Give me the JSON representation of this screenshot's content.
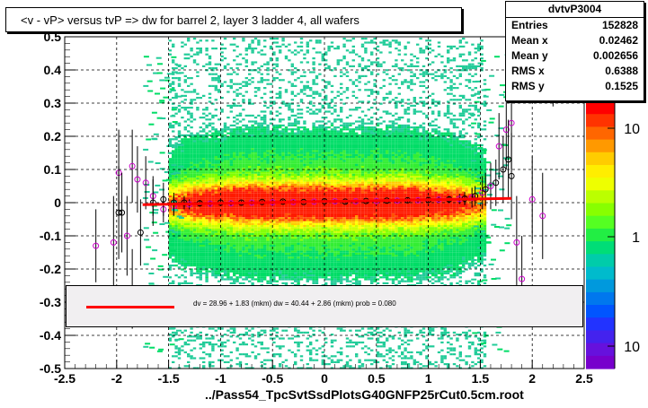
{
  "title": "<v - vP>       versus  tvP =>  dw for barrel 2, layer 3 ladder 4, all wafers",
  "x_axis_title": "../Pass54_TpcSvtSsdPlotsG40GNFP25rCut0.5cm.root",
  "stats": {
    "name": "dvtvP3004",
    "rows": [
      {
        "key": "Entries",
        "value": "152828"
      },
      {
        "key": "Mean x",
        "value": "0.02462"
      },
      {
        "key": "Mean y",
        "value": "0.002656"
      },
      {
        "key": "RMS x",
        "value": "0.6388"
      },
      {
        "key": "RMS y",
        "value": "0.1525"
      }
    ]
  },
  "fit_legend": {
    "text": "dv =    28.96 +   1.83 (mkm) dw =    40.44 +   2.86 (mkm) prob = 0.080"
  },
  "colors": {
    "fit_line": "#ff0000",
    "profile_black": "#000000",
    "profile_magenta": "#cc00cc"
  },
  "chart_data": {
    "type": "heatmap",
    "title": "<v - vP>       versus  tvP =>  dw for barrel 2, layer 3 ladder 4, all wafers",
    "xlabel": "../Pass54_TpcSvtSsdPlotsG40GNFP25rCut0.5cm.root",
    "ylabel": "",
    "xlim": [
      -2.5,
      2.5
    ],
    "ylim": [
      -0.5,
      0.5
    ],
    "x_ticks": [
      "-2.5",
      "-2",
      "-1.5",
      "-1",
      "-0.5",
      "0",
      "0.5",
      "1",
      "1.5",
      "2",
      "2.5"
    ],
    "y_ticks": [
      "-0.5",
      "-0.4",
      "-0.3",
      "-0.2",
      "-0.1",
      "0",
      "0.1",
      "0.2",
      "0.3",
      "0.4",
      "0.5"
    ],
    "grid": true,
    "z_scale": "log",
    "z_ticks": [
      "10",
      "1",
      "10"
    ],
    "fit_line": {
      "x": [
        -1.75,
        1.8
      ],
      "y": [
        -0.006,
        0.013
      ]
    },
    "profile_black": [
      {
        "x": -1.98,
        "y": -0.03,
        "err": 0.14
      },
      {
        "x": -1.95,
        "y": -0.03,
        "err": 0.12
      },
      {
        "x": -1.85,
        "y": -0.26,
        "err": 0.12
      },
      {
        "x": -1.77,
        "y": -0.09,
        "err": 0.1
      },
      {
        "x": -1.65,
        "y": 0.0,
        "err": 0.07
      },
      {
        "x": -1.55,
        "y": 0.01,
        "err": 0.05
      },
      {
        "x": -1.45,
        "y": 0.0,
        "err": 0.03
      },
      {
        "x": -1.35,
        "y": 0.0,
        "err": 0.02
      },
      {
        "x": -1.2,
        "y": -0.002,
        "err": 0.01
      },
      {
        "x": -1.0,
        "y": 0.0,
        "err": 0.008
      },
      {
        "x": -0.8,
        "y": 0.0,
        "err": 0.006
      },
      {
        "x": -0.6,
        "y": 0.002,
        "err": 0.005
      },
      {
        "x": -0.4,
        "y": 0.003,
        "err": 0.005
      },
      {
        "x": -0.2,
        "y": 0.002,
        "err": 0.005
      },
      {
        "x": 0.0,
        "y": 0.004,
        "err": 0.005
      },
      {
        "x": 0.2,
        "y": 0.003,
        "err": 0.005
      },
      {
        "x": 0.4,
        "y": 0.005,
        "err": 0.005
      },
      {
        "x": 0.6,
        "y": 0.006,
        "err": 0.005
      },
      {
        "x": 0.8,
        "y": 0.007,
        "err": 0.006
      },
      {
        "x": 1.0,
        "y": 0.008,
        "err": 0.008
      },
      {
        "x": 1.2,
        "y": 0.01,
        "err": 0.01
      },
      {
        "x": 1.35,
        "y": 0.012,
        "err": 0.02
      },
      {
        "x": 1.45,
        "y": 0.02,
        "err": 0.03
      },
      {
        "x": 1.55,
        "y": 0.04,
        "err": 0.05
      },
      {
        "x": 1.65,
        "y": 0.06,
        "err": 0.07
      },
      {
        "x": 1.72,
        "y": 0.1,
        "err": 0.1
      },
      {
        "x": 1.77,
        "y": 0.13,
        "err": 0.12
      },
      {
        "x": 1.8,
        "y": 0.08,
        "err": 0.13
      }
    ],
    "profile_magenta": [
      {
        "x": -2.2,
        "y": -0.13,
        "err": 0.11
      },
      {
        "x": -2.03,
        "y": -0.12,
        "err": 0.14
      },
      {
        "x": -1.98,
        "y": 0.09,
        "err": 0.13
      },
      {
        "x": -1.9,
        "y": -0.1,
        "err": 0.12
      },
      {
        "x": -1.85,
        "y": 0.11,
        "err": 0.11
      },
      {
        "x": -1.8,
        "y": 0.07,
        "err": 0.1
      },
      {
        "x": -1.72,
        "y": 0.06,
        "err": 0.08
      },
      {
        "x": -1.65,
        "y": 0.02,
        "err": 0.06
      },
      {
        "x": -1.55,
        "y": -0.02,
        "err": 0.04
      },
      {
        "x": -1.45,
        "y": -0.01,
        "err": 0.03
      },
      {
        "x": -1.3,
        "y": -0.005,
        "err": 0.015
      },
      {
        "x": -1.1,
        "y": -0.003,
        "err": 0.01
      },
      {
        "x": -0.9,
        "y": -0.002,
        "err": 0.008
      },
      {
        "x": -0.7,
        "y": 0.0,
        "err": 0.006
      },
      {
        "x": -0.5,
        "y": 0.001,
        "err": 0.005
      },
      {
        "x": -0.3,
        "y": 0.002,
        "err": 0.005
      },
      {
        "x": -0.1,
        "y": 0.003,
        "err": 0.005
      },
      {
        "x": 0.1,
        "y": 0.004,
        "err": 0.005
      },
      {
        "x": 0.3,
        "y": 0.004,
        "err": 0.005
      },
      {
        "x": 0.5,
        "y": 0.005,
        "err": 0.005
      },
      {
        "x": 0.7,
        "y": 0.006,
        "err": 0.006
      },
      {
        "x": 0.9,
        "y": 0.007,
        "err": 0.007
      },
      {
        "x": 1.1,
        "y": 0.009,
        "err": 0.01
      },
      {
        "x": 1.3,
        "y": 0.011,
        "err": 0.015
      },
      {
        "x": 1.42,
        "y": 0.015,
        "err": 0.03
      },
      {
        "x": 1.52,
        "y": 0.03,
        "err": 0.05
      },
      {
        "x": 1.6,
        "y": 0.05,
        "err": 0.07
      },
      {
        "x": 1.68,
        "y": 0.17,
        "err": 0.1
      },
      {
        "x": 1.75,
        "y": 0.22,
        "err": 0.12
      },
      {
        "x": 1.8,
        "y": 0.24,
        "err": 0.14
      },
      {
        "x": 1.85,
        "y": -0.12,
        "err": 0.14
      },
      {
        "x": 1.9,
        "y": -0.23,
        "err": 0.13
      },
      {
        "x": 2.0,
        "y": 0.01,
        "err": 0.13
      },
      {
        "x": 2.1,
        "y": -0.04,
        "err": 0.13
      },
      {
        "x": 2.2,
        "y": 0.43,
        "err": 0.14
      }
    ]
  }
}
